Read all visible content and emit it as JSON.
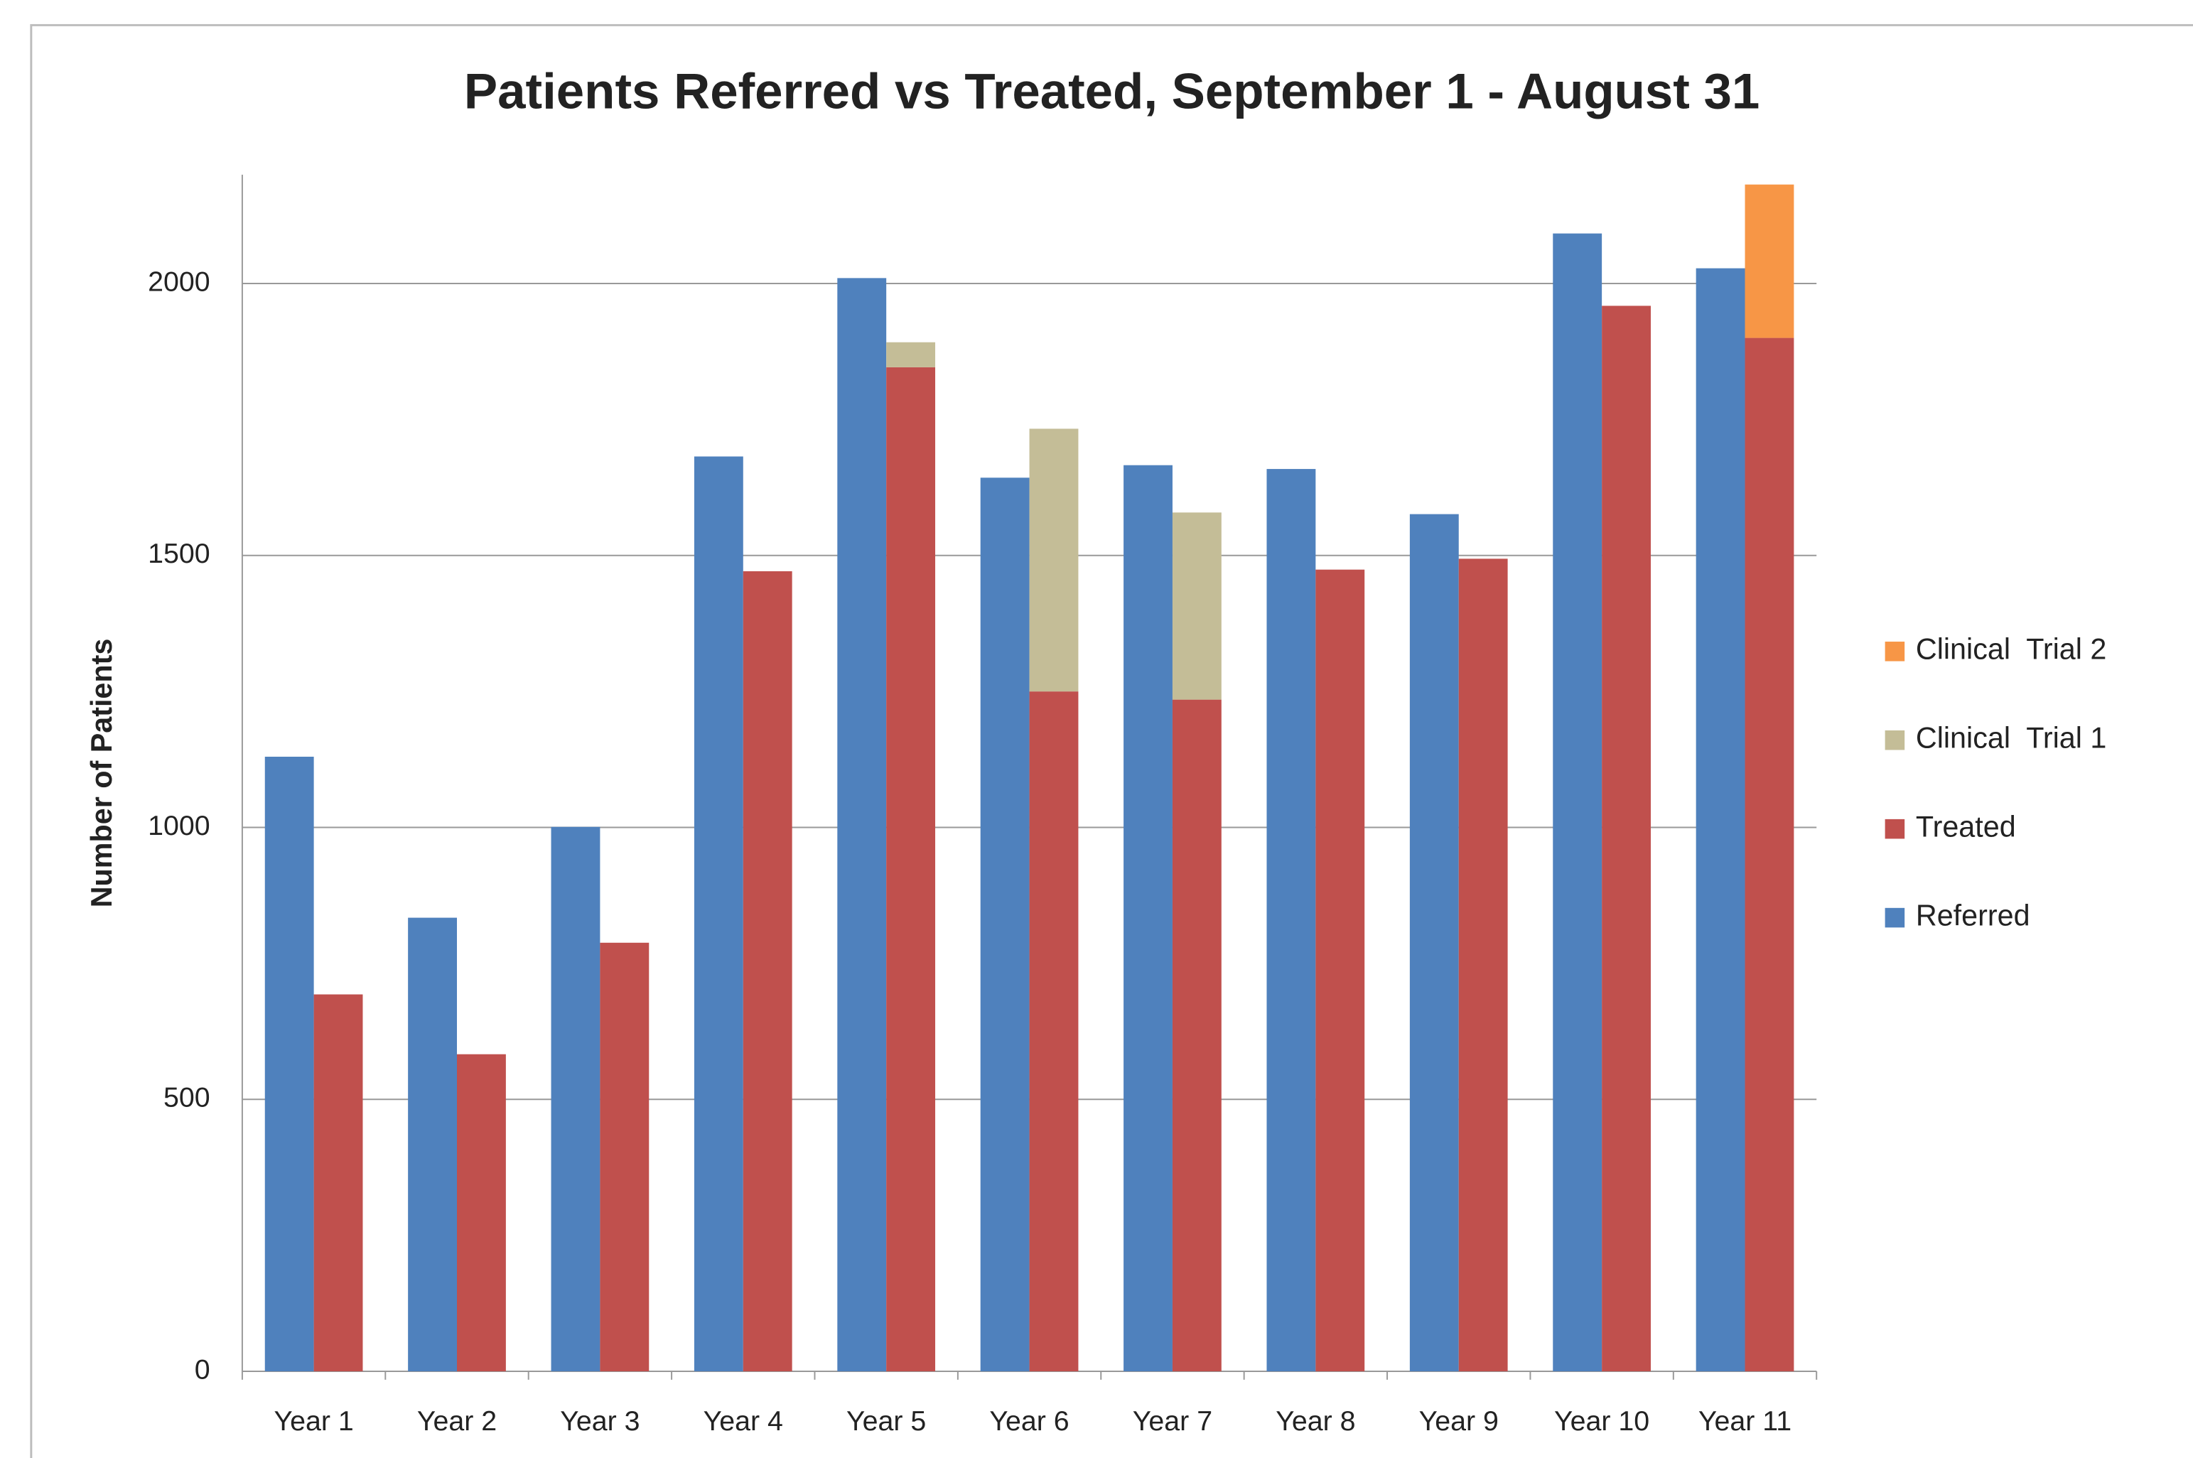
{
  "chart_data": {
    "type": "bar",
    "title": "Patients Referred vs Treated, September 1 - August 31",
    "y_label": "Number of Patients",
    "categories": [
      "Year 1",
      "Year 2",
      "Year 3",
      "Year 4",
      "Year 5",
      "Year 6",
      "Year 7",
      "Year 8",
      "Year 9",
      "Year 10",
      "Year 11"
    ],
    "series": [
      {
        "name": "Referred",
        "color": "#4f81bd",
        "values": [
          1130,
          834,
          1001,
          1682,
          2010,
          1643,
          1666,
          1659,
          1576,
          2092,
          2028
        ]
      },
      {
        "name": "Treated",
        "color": "#c0504d",
        "values": [
          693,
          583,
          788,
          1471,
          1846,
          1250,
          1235,
          1474,
          1494,
          1959,
          1900
        ]
      },
      {
        "name": "Clinical  Trial 1",
        "color": "#c4bd97",
        "values": [
          null,
          null,
          null,
          null,
          46,
          483,
          344,
          null,
          null,
          null,
          null
        ]
      },
      {
        "name": "Clinical  Trial 2",
        "color": "#f79646",
        "values": [
          null,
          null,
          null,
          null,
          null,
          null,
          null,
          null,
          null,
          null,
          282
        ]
      }
    ],
    "ylim": [
      0,
      2200
    ],
    "yticks": [
      0,
      500,
      1000,
      1500,
      2000
    ],
    "grid": true,
    "legend": "right"
  }
}
